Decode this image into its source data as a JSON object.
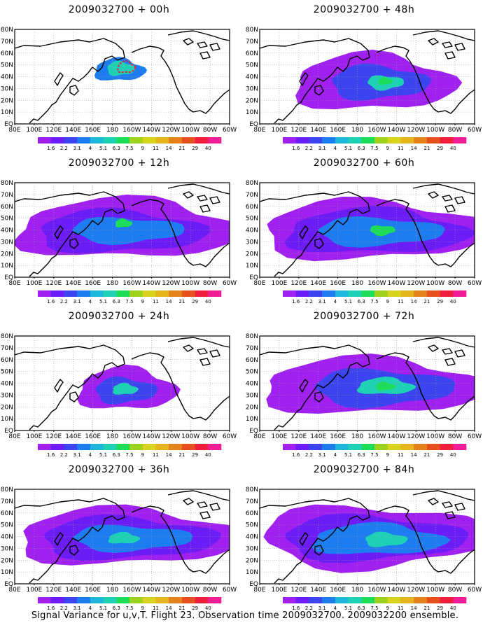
{
  "caption": "Signal Variance for u,v,T. Flight 23. Observation time 2009032700. 2009032200 ensemble.",
  "panels": [
    {
      "title": "2009032700 + 00h",
      "stage": 0
    },
    {
      "title": "2009032700 + 48h",
      "stage": 4
    },
    {
      "title": "2009032700 + 12h",
      "stage": 1
    },
    {
      "title": "2009032700 + 60h",
      "stage": 5
    },
    {
      "title": "2009032700 + 24h",
      "stage": 2
    },
    {
      "title": "2009032700 + 72h",
      "stage": 6
    },
    {
      "title": "2009032700 + 36h",
      "stage": 3
    },
    {
      "title": "2009032700 + 84h",
      "stage": 7
    }
  ],
  "lon_labels": [
    "80E",
    "100E",
    "120E",
    "140E",
    "160E",
    "180",
    "160W",
    "140W",
    "120W",
    "100W",
    "80W",
    "60W"
  ],
  "lat_labels": [
    "EQ",
    "10N",
    "20N",
    "30N",
    "40N",
    "50N",
    "60N",
    "70N",
    "80N"
  ],
  "colorbar": {
    "levels": [
      "1.6",
      "2.2",
      "3.1",
      "4",
      "5.1",
      "6.3",
      "7.5",
      "9",
      "11",
      "14",
      "21",
      "29",
      "40"
    ],
    "colors": [
      "#a020f0",
      "#6c1df5",
      "#3c44ef",
      "#1d7df0",
      "#1db7dc",
      "#1dd2b4",
      "#1ddc5a",
      "#9ed21c",
      "#d7d21c",
      "#e6b41c",
      "#e6821c",
      "#e6501c",
      "#f01e3c",
      "#f01e96"
    ]
  }
}
